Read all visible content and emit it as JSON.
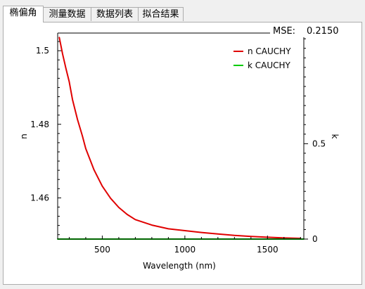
{
  "tabs": [
    {
      "label": "椭偏角",
      "active": true
    },
    {
      "label": "测量数据",
      "active": false
    },
    {
      "label": "数据列表",
      "active": false
    },
    {
      "label": "拟合结果",
      "active": false
    }
  ],
  "mse": {
    "label": "MSE:",
    "value": "0.2150"
  },
  "chart_data": {
    "type": "line",
    "title": "",
    "xlabel": "Wavelength (nm)",
    "ylabel": "n",
    "y2label": "k",
    "xlim": [
      230,
      1720
    ],
    "ylim": [
      1.4488,
      1.5048
    ],
    "y2lim": [
      0,
      1.08
    ],
    "xticks": [
      500,
      1000,
      1500
    ],
    "yticks": [
      1.46,
      1.48,
      1.5
    ],
    "y2ticks": [
      0,
      0.5
    ],
    "xtick_labels": [
      "500",
      "1000",
      "1500"
    ],
    "ytick_labels": [
      "1.46",
      "1.48",
      "1.5"
    ],
    "y2tick_labels": [
      "0",
      "0.5"
    ],
    "legend_position": "top-right",
    "series": [
      {
        "name": "n CAUCHY",
        "color": "#e00000",
        "axis": "left",
        "x": [
          240,
          260,
          280,
          300,
          320,
          350,
          380,
          400,
          450,
          500,
          550,
          600,
          650,
          700,
          800,
          900,
          1000,
          1100,
          1200,
          1300,
          1400,
          1500,
          1600,
          1700
        ],
        "y": [
          1.5036,
          1.4991,
          1.4952,
          1.4916,
          1.4867,
          1.4813,
          1.4768,
          1.4734,
          1.4676,
          1.4632,
          1.4599,
          1.4574,
          1.4555,
          1.4541,
          1.4526,
          1.4516,
          1.4511,
          1.4506,
          1.4502,
          1.4498,
          1.4495,
          1.4493,
          1.4491,
          1.449
        ]
      },
      {
        "name": "k CAUCHY",
        "color": "#00cc00",
        "axis": "right",
        "x": [
          230,
          1720
        ],
        "y": [
          0,
          0
        ]
      }
    ]
  }
}
